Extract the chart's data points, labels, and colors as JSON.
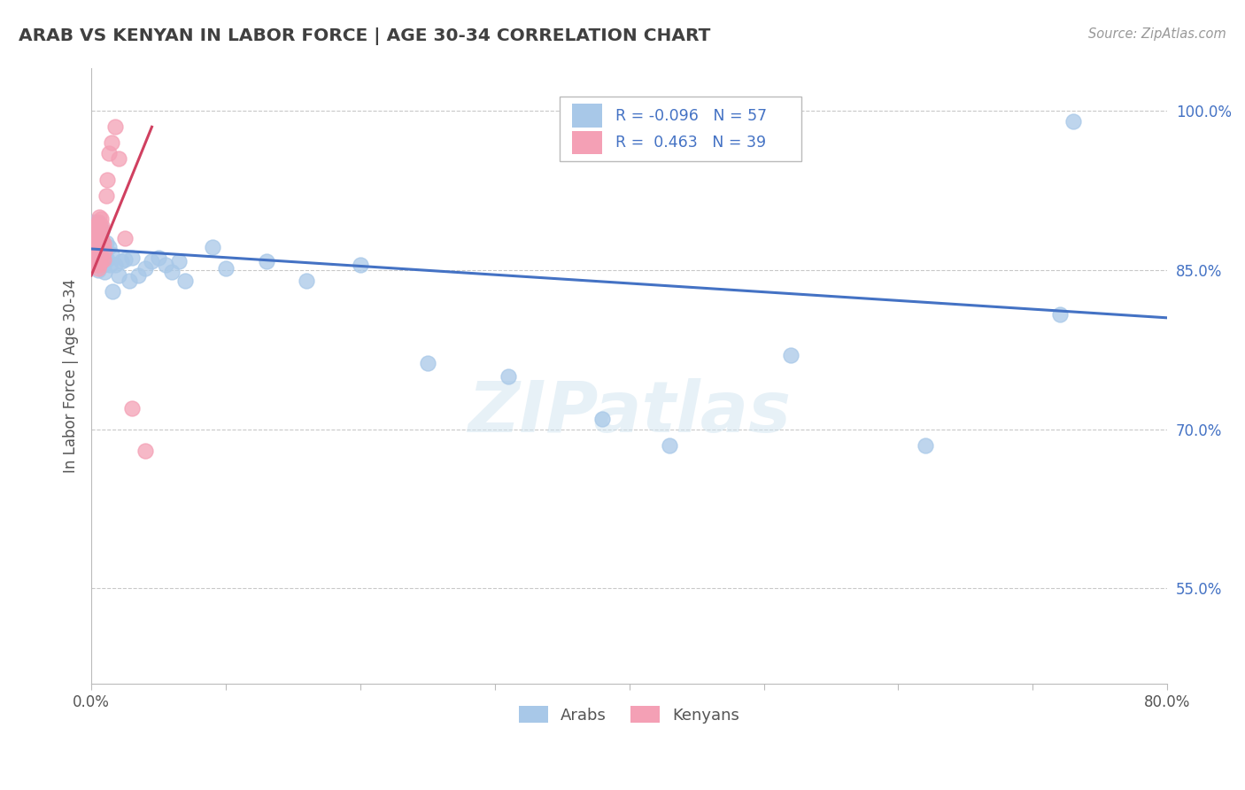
{
  "title": "ARAB VS KENYAN IN LABOR FORCE | AGE 30-34 CORRELATION CHART",
  "source_text": "Source: ZipAtlas.com",
  "ylabel": "In Labor Force | Age 30-34",
  "xlim": [
    0.0,
    0.8
  ],
  "ylim": [
    0.46,
    1.04
  ],
  "xticks": [
    0.0,
    0.1,
    0.2,
    0.3,
    0.4,
    0.5,
    0.6,
    0.7,
    0.8
  ],
  "xtick_labels": [
    "0.0%",
    "",
    "",
    "",
    "",
    "",
    "",
    "",
    "80.0%"
  ],
  "ytick_positions": [
    0.55,
    0.7,
    0.85,
    1.0
  ],
  "ytick_labels": [
    "55.0%",
    "70.0%",
    "85.0%",
    "100.0%"
  ],
  "legend_R_arab": "-0.096",
  "legend_N_arab": "57",
  "legend_R_kenyan": "0.463",
  "legend_N_kenyan": "39",
  "arab_color": "#A8C8E8",
  "kenyan_color": "#F4A0B5",
  "arab_line_color": "#4472C4",
  "kenyan_line_color": "#D04060",
  "background_color": "#FFFFFF",
  "grid_color": "#BBBBBB",
  "title_color": "#404040",
  "watermark_text": "ZIPatlas",
  "arab_x": [
    0.001,
    0.001,
    0.002,
    0.002,
    0.003,
    0.003,
    0.004,
    0.004,
    0.005,
    0.005,
    0.005,
    0.006,
    0.006,
    0.006,
    0.007,
    0.007,
    0.007,
    0.008,
    0.008,
    0.008,
    0.009,
    0.009,
    0.01,
    0.01,
    0.011,
    0.012,
    0.013,
    0.014,
    0.015,
    0.016,
    0.018,
    0.02,
    0.022,
    0.025,
    0.028,
    0.03,
    0.035,
    0.04,
    0.045,
    0.05,
    0.055,
    0.06,
    0.065,
    0.07,
    0.09,
    0.1,
    0.13,
    0.16,
    0.2,
    0.25,
    0.31,
    0.38,
    0.43,
    0.52,
    0.62,
    0.72,
    0.73
  ],
  "arab_y": [
    0.88,
    0.895,
    0.875,
    0.89,
    0.865,
    0.895,
    0.86,
    0.885,
    0.85,
    0.88,
    0.895,
    0.855,
    0.878,
    0.892,
    0.86,
    0.876,
    0.89,
    0.858,
    0.872,
    0.887,
    0.855,
    0.87,
    0.848,
    0.865,
    0.876,
    0.86,
    0.872,
    0.855,
    0.865,
    0.83,
    0.855,
    0.845,
    0.858,
    0.86,
    0.84,
    0.862,
    0.845,
    0.852,
    0.858,
    0.862,
    0.855,
    0.848,
    0.858,
    0.84,
    0.872,
    0.852,
    0.858,
    0.84,
    0.855,
    0.762,
    0.75,
    0.71,
    0.685,
    0.77,
    0.685,
    0.808,
    0.99
  ],
  "kenyan_x": [
    0.001,
    0.001,
    0.002,
    0.002,
    0.002,
    0.003,
    0.003,
    0.003,
    0.004,
    0.004,
    0.004,
    0.005,
    0.005,
    0.005,
    0.005,
    0.006,
    0.006,
    0.006,
    0.006,
    0.006,
    0.007,
    0.007,
    0.007,
    0.007,
    0.008,
    0.008,
    0.008,
    0.009,
    0.009,
    0.01,
    0.011,
    0.012,
    0.013,
    0.015,
    0.018,
    0.02,
    0.025,
    0.03,
    0.04
  ],
  "kenyan_y": [
    0.858,
    0.878,
    0.858,
    0.872,
    0.89,
    0.86,
    0.875,
    0.892,
    0.855,
    0.87,
    0.89,
    0.852,
    0.868,
    0.882,
    0.895,
    0.855,
    0.87,
    0.882,
    0.892,
    0.9,
    0.858,
    0.872,
    0.888,
    0.898,
    0.862,
    0.878,
    0.892,
    0.86,
    0.875,
    0.868,
    0.92,
    0.935,
    0.96,
    0.97,
    0.985,
    0.955,
    0.88,
    0.72,
    0.68
  ],
  "arab_line_x": [
    0.0,
    0.8
  ],
  "arab_line_y": [
    0.87,
    0.805
  ],
  "kenyan_line_x": [
    0.0,
    0.045
  ],
  "kenyan_line_y": [
    0.845,
    0.985
  ]
}
